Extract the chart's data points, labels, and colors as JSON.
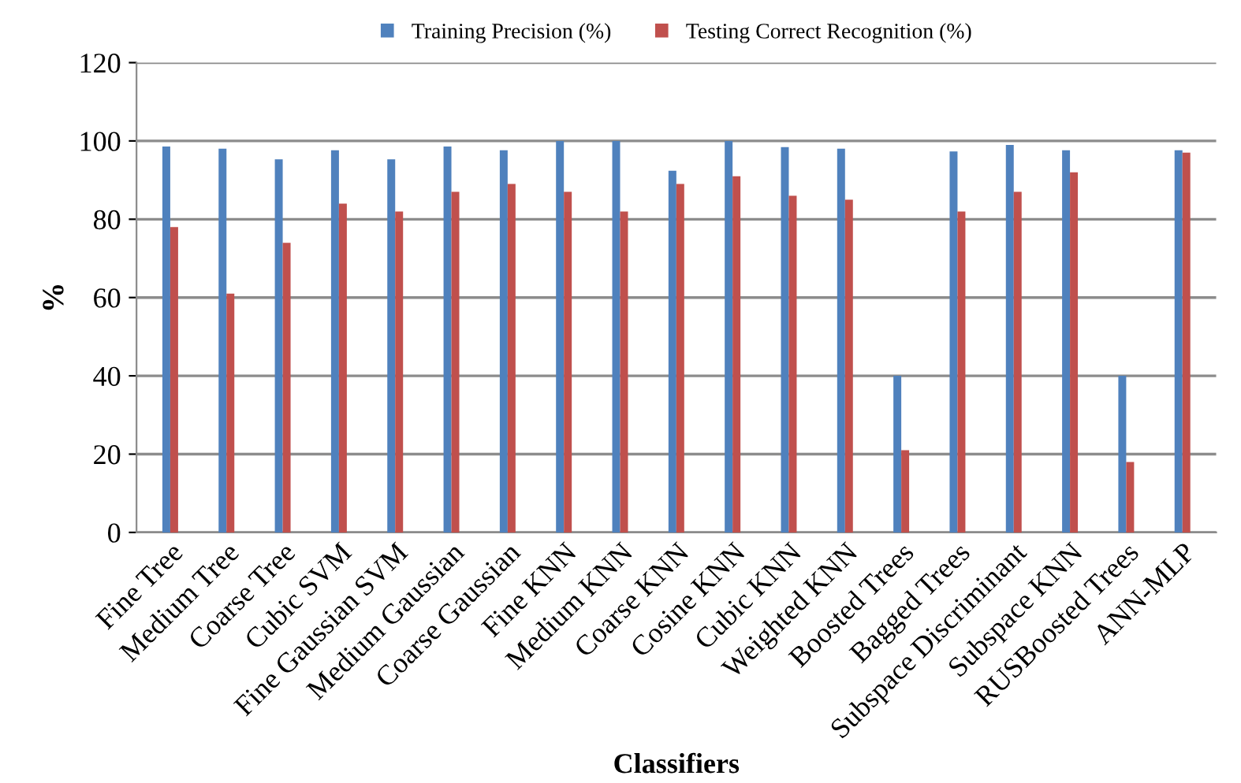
{
  "chart_data": {
    "type": "bar",
    "xlabel": "Classifiers",
    "ylabel": "%",
    "categories": [
      "Fine Tree",
      "Medium Tree",
      "Coarse Tree",
      "Cubic SVM",
      "Fine Gaussian SVM",
      "Medium Gaussian",
      "Coarse Gaussian",
      "Fine KNN",
      "Medium KNN",
      "Coarse KNN",
      "Cosine KNN",
      "Cubic KNN",
      "Weighted KNN",
      "Boosted Trees",
      "Bagged Trees",
      "Subspace Discriminant",
      "Subspace KNN",
      "RUSBoosted Trees",
      "ANN-MLP"
    ],
    "series": [
      {
        "name": "Training Precision (%)",
        "color": "#4f81bd",
        "values": [
          98.6,
          98,
          95.3,
          97.6,
          95.3,
          98.6,
          97.6,
          100,
          100,
          92.4,
          100,
          98.4,
          98,
          40,
          97.3,
          99,
          97.6,
          40,
          97.6
        ]
      },
      {
        "name": "Testing Correct Recognition (%)",
        "color": "#c0504d",
        "values": [
          78,
          61,
          74,
          84,
          82,
          87,
          89,
          87,
          82,
          89,
          91,
          86,
          85,
          21,
          82,
          87,
          92,
          18,
          97
        ]
      }
    ],
    "ylim": [
      0,
      120
    ],
    "yticks": [
      0,
      20,
      40,
      60,
      80,
      100,
      120
    ],
    "grid": "y",
    "legend": "top"
  }
}
